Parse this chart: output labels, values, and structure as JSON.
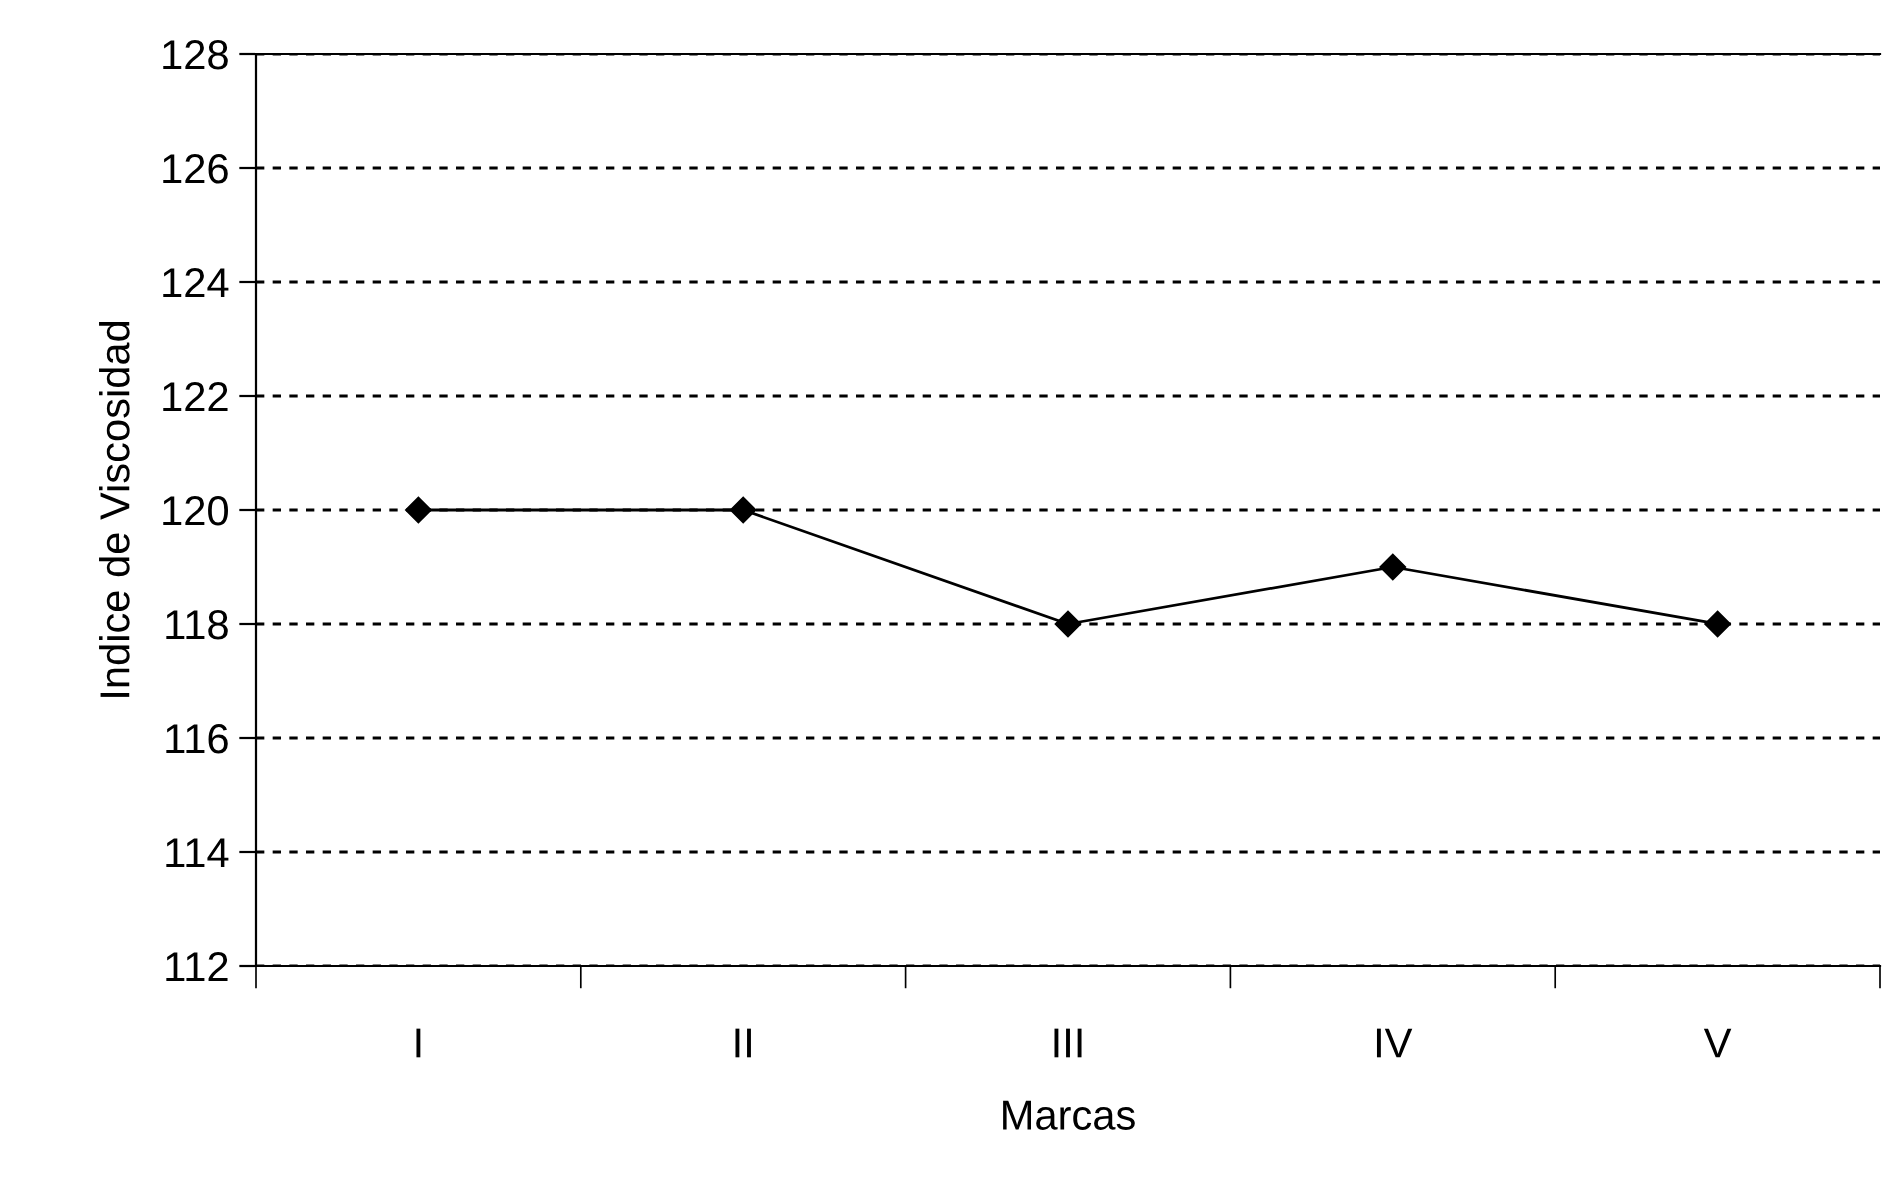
{
  "chart_data": {
    "type": "line",
    "xlabel": "Marcas",
    "ylabel": "Indice de Viscosidad",
    "categories": [
      "I",
      "II",
      "III",
      "IV",
      "V"
    ],
    "series": [
      {
        "color": "#000000",
        "values": [
          120,
          120,
          118,
          119,
          118
        ]
      }
    ],
    "ylim": [
      112,
      128
    ],
    "yticks": [
      112,
      114,
      116,
      118,
      120,
      122,
      124,
      126,
      128
    ],
    "grid": "y",
    "marker": "diamond",
    "line_style": "solid",
    "legend": false
  }
}
